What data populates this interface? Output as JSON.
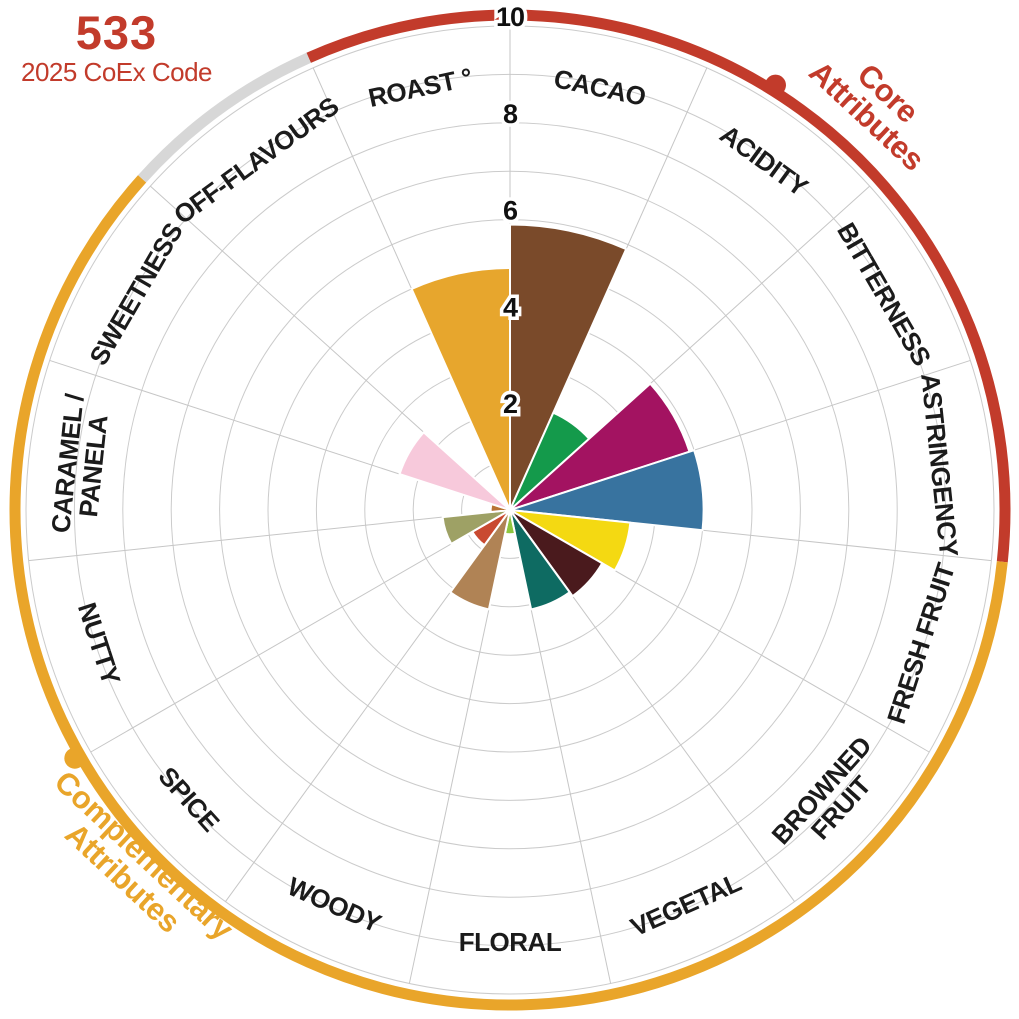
{
  "header": {
    "code": "533",
    "subtitle": "2025 CoEx Code"
  },
  "colors": {
    "accent_red": "#C23B2B",
    "accent_gold": "#E9A52A",
    "neutral_grey": "#D7D7D7",
    "grid_line": "#CBCBCB",
    "spoke_line": "#C6C6C6",
    "label_text": "#1B1B1B",
    "tick_text": "#101010",
    "background": "#FFFFFF"
  },
  "chart_data": {
    "type": "polar-bar-rose",
    "radial_axis": {
      "min": 0,
      "max": 10,
      "labeled_ticks": [
        2,
        4,
        6,
        8,
        10
      ],
      "gridline_step": 1
    },
    "sector_span_deg": 24,
    "start_angle_deg": 0,
    "categories": [
      {
        "label": "CACAO",
        "lines": [
          "CACAO"
        ],
        "value": 5.9,
        "color": "#7A4A2A",
        "group": "core"
      },
      {
        "label": "ACIDITY",
        "lines": [
          "ACIDITY"
        ],
        "value": 2.2,
        "color": "#149A4B",
        "group": "core"
      },
      {
        "label": "BITTERNESS",
        "lines": [
          "BITTERNESS"
        ],
        "value": 3.9,
        "color": "#A31361",
        "group": "core"
      },
      {
        "label": "ASTRINGENCY",
        "lines": [
          "ASTRINGENCY"
        ],
        "value": 4.0,
        "color": "#38739F",
        "group": "core"
      },
      {
        "label": "FRESH FRUIT",
        "lines": [
          "FRESH FRUIT"
        ],
        "value": 2.5,
        "color": "#F4D912",
        "group": "complementary"
      },
      {
        "label": "BROWNED FRUIT",
        "lines": [
          "BROWNED",
          "FRUIT"
        ],
        "value": 2.2,
        "color": "#4A1A1D",
        "group": "complementary"
      },
      {
        "label": "VEGETAL",
        "lines": [
          "VEGETAL"
        ],
        "value": 2.1,
        "color": "#0E6B62",
        "group": "complementary"
      },
      {
        "label": "FLORAL",
        "lines": [
          "FLORAL"
        ],
        "value": 0.5,
        "color": "#8DC63F",
        "group": "complementary"
      },
      {
        "label": "WOODY",
        "lines": [
          "WOODY"
        ],
        "value": 2.1,
        "color": "#B08355",
        "group": "complementary"
      },
      {
        "label": "SPICE",
        "lines": [
          "SPICE"
        ],
        "value": 0.9,
        "color": "#C94A31",
        "group": "complementary"
      },
      {
        "label": "NUTTY",
        "lines": [
          "NUTTY"
        ],
        "value": 1.4,
        "color": "#9EA165",
        "group": "complementary"
      },
      {
        "label": "CARAMEL / PANELA",
        "lines": [
          "CARAMEL /",
          "PANELA"
        ],
        "value": 0.4,
        "color": "#B97435",
        "group": "complementary"
      },
      {
        "label": "SWEETNESS",
        "lines": [
          "SWEETNESS"
        ],
        "value": 2.4,
        "color": "#F7C9DB",
        "group": "complementary"
      },
      {
        "label": "OFF-FLAVOURS",
        "lines": [
          "OFF-FLAVOURS"
        ],
        "value": 0,
        "color": "#D7D7D7",
        "group": "neutral"
      },
      {
        "label": "ROAST °",
        "lines": [
          "ROAST °"
        ],
        "value": 5.0,
        "color": "#E7A62D",
        "group": "core"
      }
    ],
    "groups": [
      {
        "id": "core",
        "label": "Core Attributes",
        "label_lines": [
          "Core",
          "Attributes"
        ],
        "color": "#C23B2B",
        "arc_from_deg": -24,
        "arc_to_deg": 96,
        "dot_angle_deg": 32
      },
      {
        "id": "complementary",
        "label": "Complementary Attributes",
        "label_lines": [
          "Complementary",
          "Attributes"
        ],
        "color": "#E9A52A",
        "arc_from_deg": 96,
        "arc_to_deg": 312,
        "dot_angle_deg": 240.3
      },
      {
        "id": "neutral",
        "label": "",
        "label_lines": [],
        "color": "#D7D7D7",
        "arc_from_deg": 312,
        "arc_to_deg": 336,
        "dot_angle_deg": null
      }
    ]
  }
}
